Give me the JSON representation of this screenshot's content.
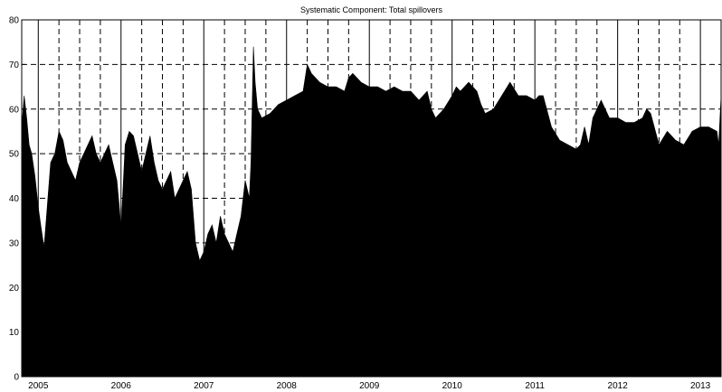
{
  "chart_data": {
    "type": "area",
    "title": "Systematic Component: Total spillovers",
    "xlabel": "",
    "ylabel": "",
    "xlim": [
      2004.8,
      2013.25
    ],
    "ylim": [
      0,
      80
    ],
    "x_ticks": [
      2005,
      2006,
      2007,
      2008,
      2009,
      2010,
      2011,
      2012,
      2013
    ],
    "y_ticks": [
      0,
      10,
      20,
      30,
      40,
      50,
      60,
      70,
      80
    ],
    "grid": "dashed",
    "fill_color": "#000000",
    "series": [
      {
        "x": [
          2004.8,
          2004.83,
          2004.86,
          2004.89,
          2004.92,
          2004.96,
          2005.0,
          2005.03,
          2005.07,
          2005.1,
          2005.15,
          2005.2,
          2005.25,
          2005.3,
          2005.35,
          2005.4,
          2005.45,
          2005.5,
          2005.55,
          2005.6,
          2005.65,
          2005.7,
          2005.75,
          2005.8,
          2005.85,
          2005.9,
          2005.95,
          2005.98,
          2006.0,
          2006.05,
          2006.1,
          2006.15,
          2006.2,
          2006.25,
          2006.3,
          2006.35,
          2006.4,
          2006.45,
          2006.5,
          2006.55,
          2006.6,
          2006.65,
          2006.7,
          2006.75,
          2006.8,
          2006.85,
          2006.9,
          2006.95,
          2007.0,
          2007.05,
          2007.1,
          2007.15,
          2007.2,
          2007.25,
          2007.3,
          2007.35,
          2007.4,
          2007.45,
          2007.5,
          2007.55,
          2007.57,
          2007.6,
          2007.62,
          2007.65,
          2007.7,
          2007.8,
          2007.9,
          2008.0,
          2008.1,
          2008.2,
          2008.25,
          2008.3,
          2008.4,
          2008.5,
          2008.6,
          2008.7,
          2008.75,
          2008.8,
          2008.9,
          2009.0,
          2009.1,
          2009.2,
          2009.3,
          2009.4,
          2009.5,
          2009.6,
          2009.7,
          2009.75,
          2009.8,
          2009.9,
          2010.0,
          2010.05,
          2010.1,
          2010.15,
          2010.2,
          2010.3,
          2010.35,
          2010.4,
          2010.5,
          2010.6,
          2010.7,
          2010.8,
          2010.9,
          2011.0,
          2011.05,
          2011.1,
          2011.2,
          2011.3,
          2011.4,
          2011.5,
          2011.55,
          2011.6,
          2011.65,
          2011.7,
          2011.8,
          2011.9,
          2012.0,
          2012.1,
          2012.2,
          2012.3,
          2012.35,
          2012.4,
          2012.5,
          2012.6,
          2012.7,
          2012.8,
          2012.9,
          2013.0,
          2013.1,
          2013.2,
          2013.22,
          2013.25
        ],
        "y": [
          56,
          63,
          58,
          52,
          50,
          45,
          38,
          34,
          29,
          36,
          48,
          50,
          55,
          53,
          48,
          46,
          44,
          48,
          50,
          52,
          54,
          50,
          48,
          50,
          52,
          48,
          44,
          38,
          33,
          52,
          55,
          54,
          50,
          46,
          50,
          54,
          48,
          44,
          42,
          44,
          46,
          40,
          42,
          44,
          46,
          42,
          30,
          26,
          28,
          32,
          34,
          30,
          36,
          32,
          30,
          28,
          32,
          36,
          44,
          40,
          48,
          74,
          66,
          60,
          58,
          59,
          61,
          62,
          63,
          64,
          70,
          68,
          66,
          65,
          65,
          64,
          67,
          68,
          66,
          65,
          65,
          64,
          65,
          64,
          64,
          62,
          64,
          60,
          58,
          60,
          63,
          65,
          64,
          65,
          66,
          64,
          61,
          59,
          60,
          63,
          66,
          63,
          63,
          62,
          63,
          63,
          56,
          53,
          52,
          51,
          52,
          56,
          52,
          58,
          62,
          58,
          58,
          57,
          57,
          58,
          60,
          59,
          52,
          55,
          53,
          52,
          55,
          56,
          56,
          55,
          52,
          63
        ]
      }
    ]
  }
}
